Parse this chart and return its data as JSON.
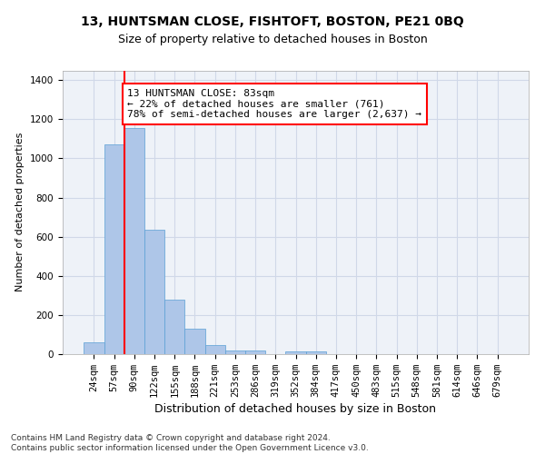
{
  "title1": "13, HUNTSMAN CLOSE, FISHTOFT, BOSTON, PE21 0BQ",
  "title2": "Size of property relative to detached houses in Boston",
  "xlabel": "Distribution of detached houses by size in Boston",
  "ylabel": "Number of detached properties",
  "footnote": "Contains HM Land Registry data © Crown copyright and database right 2024.\nContains public sector information licensed under the Open Government Licence v3.0.",
  "categories": [
    "24sqm",
    "57sqm",
    "90sqm",
    "122sqm",
    "155sqm",
    "188sqm",
    "221sqm",
    "253sqm",
    "286sqm",
    "319sqm",
    "352sqm",
    "384sqm",
    "417sqm",
    "450sqm",
    "483sqm",
    "515sqm",
    "548sqm",
    "581sqm",
    "614sqm",
    "646sqm",
    "679sqm"
  ],
  "values": [
    62,
    1070,
    1155,
    638,
    278,
    130,
    45,
    20,
    18,
    0,
    15,
    12,
    0,
    0,
    0,
    0,
    0,
    0,
    0,
    0,
    0
  ],
  "bar_color": "#aec6e8",
  "bar_edge_color": "#5a9fd4",
  "vline_color": "red",
  "vline_linewidth": 1.5,
  "annotation_text": "13 HUNTSMAN CLOSE: 83sqm\n← 22% of detached houses are smaller (761)\n78% of semi-detached houses are larger (2,637) →",
  "annotation_box_color": "white",
  "annotation_box_edgecolor": "red",
  "ylim": [
    0,
    1450
  ],
  "yticks": [
    0,
    200,
    400,
    600,
    800,
    1000,
    1200,
    1400
  ],
  "grid_color": "#d0d8e8",
  "background_color": "#eef2f8",
  "title1_fontsize": 10,
  "title2_fontsize": 9,
  "xlabel_fontsize": 9,
  "ylabel_fontsize": 8,
  "tick_fontsize": 7.5,
  "annotation_fontsize": 8
}
